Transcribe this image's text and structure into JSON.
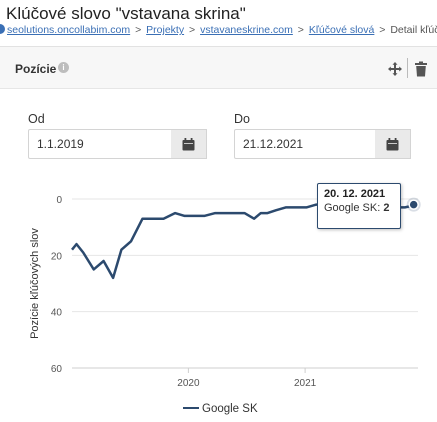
{
  "page": {
    "title": "Klúčové slovo \"vstavana skrina\"",
    "breadcrumb": {
      "domain": "seolutions.oncollabim.com",
      "projects": "Projekty",
      "project": "vstavaneskrine.com",
      "keywords": "Kľúčové slová",
      "current": "Detail kľúčového slo",
      "separator": ">"
    }
  },
  "panel": {
    "title": "Pozície",
    "info_glyph": "i",
    "icons": [
      "info-icon",
      "move-icon",
      "trash-icon"
    ]
  },
  "filters": {
    "from_label": "Od",
    "from_value": "1.1.2019",
    "to_label": "Do",
    "to_value": "21.12.2021",
    "calendar_icon": "calendar-icon"
  },
  "tooltip": {
    "date": "20. 12. 2021",
    "series": "Google SK",
    "value": "2"
  },
  "colors": {
    "series": "#2c4a6e",
    "link": "#3a6fb5"
  },
  "chart_data": {
    "type": "line",
    "ylabel": "Pozície kľúčových slov",
    "xlabel": "",
    "y_reversed": true,
    "ylim": [
      0,
      60
    ],
    "yticks": [
      "0",
      "20",
      "40",
      "60"
    ],
    "xticks": [
      "2020",
      "2021"
    ],
    "grid": "horizontal",
    "legend_position": "bottom",
    "series": [
      {
        "name": "Google SK",
        "x": [
          "2019-01-01",
          "2019-01-15",
          "2019-02-05",
          "2019-03-10",
          "2019-04-10",
          "2019-05-10",
          "2019-06-05",
          "2019-07-05",
          "2019-08-10",
          "2019-09-15",
          "2019-10-15",
          "2019-11-20",
          "2019-12-20",
          "2020-01-20",
          "2020-02-20",
          "2020-03-25",
          "2020-04-25",
          "2020-05-25",
          "2020-06-25",
          "2020-07-25",
          "2020-08-15",
          "2020-09-05",
          "2020-10-01",
          "2020-11-01",
          "2020-12-01",
          "2021-01-05",
          "2021-02-05",
          "2021-03-10",
          "2021-04-10",
          "2021-05-10",
          "2021-06-10",
          "2021-07-10",
          "2021-08-10",
          "2021-09-10",
          "2021-10-10",
          "2021-11-10",
          "2021-12-20"
        ],
        "values": [
          18,
          16,
          19,
          25,
          22,
          28,
          18,
          15,
          7,
          7,
          7,
          5,
          6,
          6,
          6,
          5,
          5,
          5,
          5,
          7,
          5,
          5,
          4,
          3,
          3,
          3,
          2,
          2,
          2,
          2,
          2,
          2,
          2,
          2,
          3,
          3,
          2
        ]
      }
    ]
  },
  "legend": {
    "items": [
      "Google SK"
    ]
  }
}
